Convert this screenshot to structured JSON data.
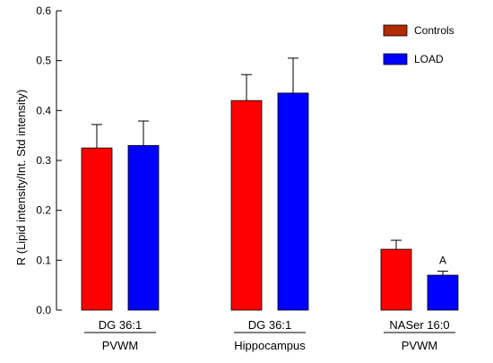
{
  "chart_data": {
    "type": "bar",
    "ylabel": "R (Lipid intensity/Int. Std intensity)",
    "ylim": [
      0,
      0.6
    ],
    "yticks": [
      "0.0",
      "0.1",
      "0.2",
      "0.3",
      "0.4",
      "0.5",
      "0.6"
    ],
    "groups": [
      {
        "lipid": "DG 36:1",
        "region": "PVWM"
      },
      {
        "lipid": "DG 36:1",
        "region": "Hippocampus"
      },
      {
        "lipid": "NASer 16:0",
        "region": "PVWM"
      }
    ],
    "series": [
      {
        "name": "Controls",
        "color": "#ff0000",
        "legend_color": "#b22a00",
        "values": [
          0.325,
          0.42,
          0.122
        ],
        "errors": [
          0.047,
          0.052,
          0.018
        ]
      },
      {
        "name": "LOAD",
        "color": "#0000ff",
        "legend_color": "#0000ff",
        "values": [
          0.33,
          0.435,
          0.07
        ],
        "errors": [
          0.049,
          0.07,
          0.008
        ]
      }
    ],
    "annotations": [
      {
        "text": "A",
        "group": 2,
        "series": 1
      }
    ],
    "legend_position": "top-right",
    "grid": false
  }
}
